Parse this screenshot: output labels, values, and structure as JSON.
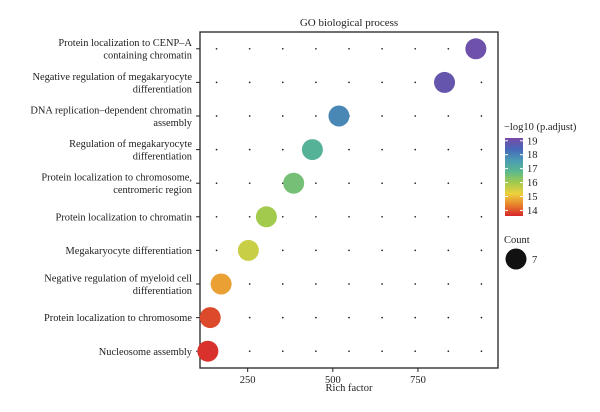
{
  "chart_data": {
    "type": "scatter",
    "title": "GO biological process",
    "xlabel": "Rich factor",
    "ylabel": "",
    "xlim": [
      110,
      985
    ],
    "xticks": [
      250,
      500,
      750
    ],
    "grid": "dotted",
    "points": [
      {
        "term_lines": [
          "Protein localization to CENP–A",
          "containing chromatin"
        ],
        "x": 920,
        "neglog10": 19.0
      },
      {
        "term_lines": [
          "Negative regulation of megakaryocyte",
          "differentiation"
        ],
        "x": 828,
        "neglog10": 18.9
      },
      {
        "term_lines": [
          "DNA replication–dependent chromatin",
          "assembly"
        ],
        "x": 518,
        "neglog10": 17.9
      },
      {
        "term_lines": [
          "Regulation of megakaryocyte",
          "differentiation"
        ],
        "x": 440,
        "neglog10": 17.0
      },
      {
        "term_lines": [
          "Protein localization to chromosome,",
          "centromeric region"
        ],
        "x": 385,
        "neglog10": 16.5
      },
      {
        "term_lines": [
          "Protein localization to chromatin"
        ],
        "x": 305,
        "neglog10": 16.0
      },
      {
        "term_lines": [
          "Megakaryocyte differentiation"
        ],
        "x": 252,
        "neglog10": 15.6
      },
      {
        "term_lines": [
          "Negative regulation of myeloid cell",
          "differentiation"
        ],
        "x": 172,
        "neglog10": 14.7
      },
      {
        "term_lines": [
          "Protein localization to chromosome"
        ],
        "x": 140,
        "neglog10": 13.9
      },
      {
        "term_lines": [
          "Nucleosome assembly"
        ],
        "x": 133,
        "neglog10": 13.7
      }
    ],
    "color_legend": {
      "title": "−log10 (p.adjust)",
      "min": 13.6,
      "max": 19.2,
      "ticks": [
        "14",
        "15",
        "16",
        "17",
        "18",
        "19"
      ],
      "colors": [
        "#d7262b",
        "#e8822c",
        "#eed13e",
        "#a2ca4d",
        "#5ab98e",
        "#4b9bb3",
        "#4668b9",
        "#7a4aa6"
      ],
      "placement": "right"
    },
    "size_legend": {
      "title": "Count",
      "value": "7"
    }
  }
}
